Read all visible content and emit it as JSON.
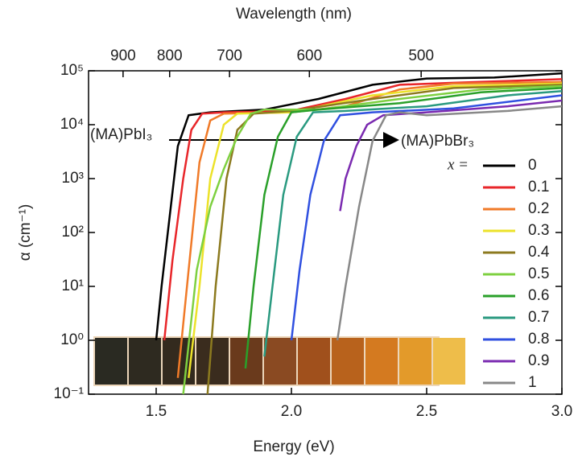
{
  "chart_data": {
    "type": "line",
    "xlabel": "Energy (eV)",
    "ylabel": "α (cm⁻¹)",
    "top_xlabel": "Wavelength (nm)",
    "xlim": [
      1.25,
      3.0
    ],
    "xticks": [
      {
        "value": 1.5,
        "label": "1.5"
      },
      {
        "value": 2.0,
        "label": "2.0"
      },
      {
        "value": 2.5,
        "label": "2.5"
      },
      {
        "value": 3.0,
        "label": "3.0"
      }
    ],
    "top_xticks": [
      900,
      800,
      700,
      600,
      500
    ],
    "log_y": true,
    "ylim": [
      0.1,
      100000
    ],
    "yticks": [
      {
        "value": 0.1,
        "label": "10⁻¹"
      },
      {
        "value": 1,
        "label": "10⁰"
      },
      {
        "value": 10,
        "label": "10¹"
      },
      {
        "value": 100,
        "label": "10²"
      },
      {
        "value": 1000,
        "label": "10³"
      },
      {
        "value": 10000,
        "label": "10⁴"
      },
      {
        "value": 100000,
        "label": "10⁵"
      }
    ],
    "legend_title": "x =",
    "legend_position": "right",
    "annotations": [
      "(MA)PbI₃",
      "(MA)PbBr₃"
    ],
    "series": [
      {
        "name": "0",
        "color": "#000000",
        "x": [
          1.5,
          1.52,
          1.55,
          1.58,
          1.62,
          1.7,
          1.9,
          2.1,
          2.3,
          2.5,
          2.75,
          3.0
        ],
        "values": [
          1,
          10,
          200,
          4000,
          15000,
          17000,
          19000,
          30000,
          55000,
          72000,
          75000,
          90000
        ]
      },
      {
        "name": "0.1",
        "color": "#e8262a",
        "x": [
          1.53,
          1.56,
          1.6,
          1.63,
          1.67,
          1.75,
          2.0,
          2.2,
          2.4,
          2.6,
          3.0
        ],
        "values": [
          1,
          30,
          1000,
          8000,
          16000,
          17000,
          18000,
          30000,
          55000,
          60000,
          70000
        ]
      },
      {
        "name": "0.2",
        "color": "#f07a28",
        "x": [
          1.58,
          1.62,
          1.66,
          1.7,
          1.75,
          2.0,
          2.2,
          2.4,
          2.6,
          3.0
        ],
        "values": [
          0.2,
          20,
          2000,
          12000,
          16000,
          17000,
          22000,
          45000,
          58000,
          62000
        ]
      },
      {
        "name": "0.3",
        "color": "#ece22a",
        "x": [
          1.62,
          1.66,
          1.7,
          1.75,
          1.8,
          2.0,
          2.3,
          2.6,
          3.0
        ],
        "values": [
          0.2,
          10,
          1000,
          10000,
          16000,
          17000,
          35000,
          52000,
          58000
        ]
      },
      {
        "name": "0.4",
        "color": "#8c7a1f",
        "x": [
          1.69,
          1.72,
          1.76,
          1.8,
          1.86,
          2.0,
          2.3,
          2.6,
          3.0
        ],
        "values": [
          0.1,
          10,
          1000,
          8000,
          16000,
          18000,
          30000,
          48000,
          55000
        ]
      },
      {
        "name": "0.5",
        "color": "#7ed040",
        "x": [
          1.6,
          1.65,
          1.7,
          1.75,
          1.8,
          1.85,
          1.9,
          2.1,
          2.4,
          2.7,
          3.0
        ],
        "values": [
          0.1,
          20,
          300,
          1500,
          6000,
          16000,
          19000,
          19000,
          30000,
          45000,
          52000
        ]
      },
      {
        "name": "0.6",
        "color": "#2aa02a",
        "x": [
          1.83,
          1.86,
          1.9,
          1.95,
          2.0,
          2.1,
          2.4,
          2.7,
          3.0
        ],
        "values": [
          0.3,
          10,
          500,
          6000,
          17000,
          19000,
          25000,
          40000,
          48000
        ]
      },
      {
        "name": "0.7",
        "color": "#2a9a80",
        "x": [
          1.9,
          1.93,
          1.97,
          2.02,
          2.08,
          2.2,
          2.5,
          2.8,
          3.0
        ],
        "values": [
          0.5,
          10,
          500,
          6000,
          17000,
          18000,
          22000,
          35000,
          42000
        ]
      },
      {
        "name": "0.8",
        "color": "#3050e0",
        "x": [
          2.0,
          2.03,
          2.07,
          2.12,
          2.18,
          2.3,
          2.6,
          3.0
        ],
        "values": [
          1,
          20,
          500,
          5000,
          15000,
          17000,
          20000,
          35000
        ]
      },
      {
        "name": "0.9",
        "color": "#7a2ab0",
        "x": [
          2.18,
          2.2,
          2.24,
          2.28,
          2.34,
          2.5,
          2.8,
          3.0
        ],
        "values": [
          250,
          1000,
          4000,
          10000,
          15000,
          17000,
          22000,
          28000
        ]
      },
      {
        "name": "1",
        "color": "#888888",
        "x": [
          2.17,
          2.2,
          2.25,
          2.3,
          2.35,
          2.4,
          2.5,
          2.8,
          3.0
        ],
        "values": [
          1,
          10,
          300,
          5000,
          15000,
          17000,
          15000,
          18000,
          22000
        ]
      }
    ]
  }
}
